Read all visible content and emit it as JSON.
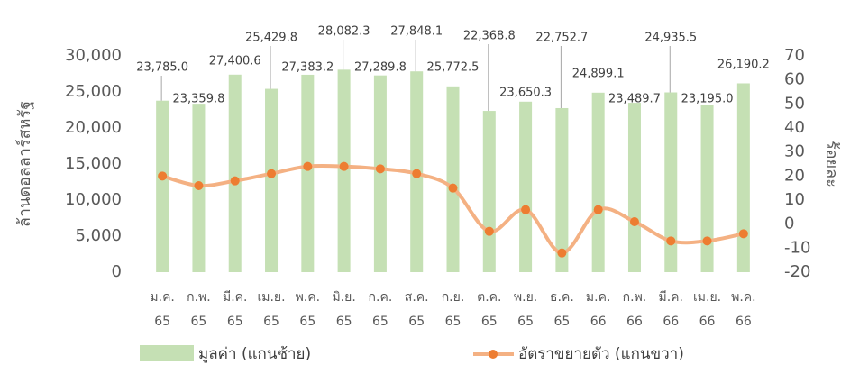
{
  "chart_data": {
    "type": "bar_line",
    "categories": [
      [
        "ม.ค.",
        "65"
      ],
      [
        "ก.พ.",
        "65"
      ],
      [
        "มี.ค.",
        "65"
      ],
      [
        "เม.ย.",
        "65"
      ],
      [
        "พ.ค.",
        "65"
      ],
      [
        "มิ.ย.",
        "65"
      ],
      [
        "ก.ค.",
        "65"
      ],
      [
        "ส.ค.",
        "65"
      ],
      [
        "ก.ย.",
        "65"
      ],
      [
        "ต.ค.",
        "65"
      ],
      [
        "พ.ย.",
        "65"
      ],
      [
        "ธ.ค.",
        "65"
      ],
      [
        "ม.ค.",
        "66"
      ],
      [
        "ก.พ.",
        "66"
      ],
      [
        "มี.ค.",
        "66"
      ],
      [
        "เม.ย.",
        "66"
      ],
      [
        "พ.ค.",
        "66"
      ]
    ],
    "series": [
      {
        "name": "มูลค่า (แกนซ้าย)",
        "type": "bar",
        "color": "#c5e0b4",
        "values": [
          23785.0,
          23359.8,
          27400.6,
          25429.8,
          27383.2,
          28082.3,
          27289.8,
          27848.1,
          25772.5,
          22368.8,
          23650.3,
          22752.7,
          24899.1,
          23489.7,
          24935.5,
          23195.0,
          26190.2
        ],
        "value_labels": [
          "23,785.0",
          "23,359.8",
          "27,400.6",
          "25,429.8",
          "27,383.2",
          "28,082.3",
          "27,289.8",
          "27,848.1",
          "25,772.5",
          "22,368.8",
          "23,650.3",
          "22,752.7",
          "24,899.1",
          "23,489.7",
          "24,935.5",
          "23,195.0",
          "26,190.2"
        ]
      },
      {
        "name": "อัตราขยายตัว (แกนขวา)",
        "type": "line",
        "axis": "y2",
        "color": "#f4b183",
        "marker_color": "#ed7d31",
        "values": [
          20,
          16,
          18,
          21,
          24,
          24,
          23,
          21,
          15,
          -3,
          6,
          -12,
          6,
          1,
          -7,
          -7,
          -4
        ]
      }
    ],
    "ylabel": "ล้านดอลลาร์สหรัฐ",
    "y2label": "ร้อยละ",
    "ylim": [
      0,
      30000
    ],
    "yticks": [
      0,
      {
        "value": 5000,
        "label": "5,000"
      },
      {
        "value": 10000,
        "label": "10,000"
      },
      {
        "value": 15000,
        "label": "15,000"
      },
      {
        "value": 20000,
        "label": "20,000"
      },
      {
        "value": 25000,
        "label": "25,000"
      },
      {
        "value": 30000,
        "label": "30,000"
      }
    ],
    "y2lim": [
      -20,
      70
    ],
    "y2ticks": [
      -20,
      -10,
      0,
      10,
      20,
      30,
      40,
      50,
      60,
      70
    ],
    "grid": false,
    "legend": "bottom"
  }
}
